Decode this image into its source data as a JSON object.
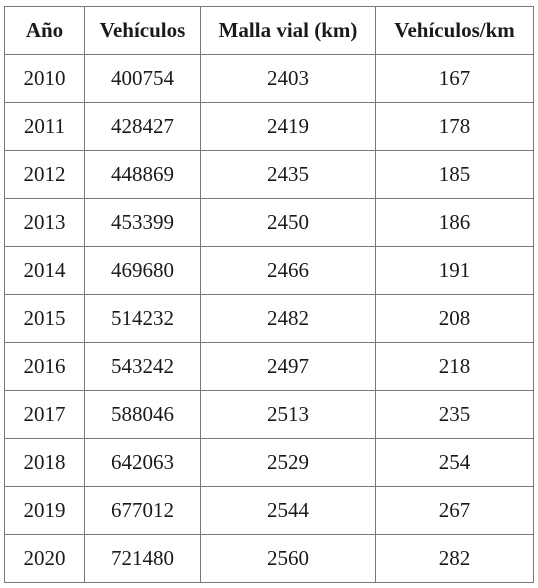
{
  "table": {
    "header": [
      "Año",
      "Vehículos",
      "Malla vial (km)",
      "Vehículos/km"
    ],
    "rows": [
      [
        2010,
        400754,
        2403,
        167
      ],
      [
        2011,
        428427,
        2419,
        178
      ],
      [
        2012,
        448869,
        2435,
        185
      ],
      [
        2013,
        453399,
        2450,
        186
      ],
      [
        2014,
        469680,
        2466,
        191
      ],
      [
        2015,
        514232,
        2482,
        208
      ],
      [
        2016,
        543242,
        2497,
        218
      ],
      [
        2017,
        588046,
        2513,
        235
      ],
      [
        2018,
        642063,
        2529,
        254
      ],
      [
        2019,
        677012,
        2544,
        267
      ],
      [
        2020,
        721480,
        2560,
        282
      ]
    ]
  }
}
